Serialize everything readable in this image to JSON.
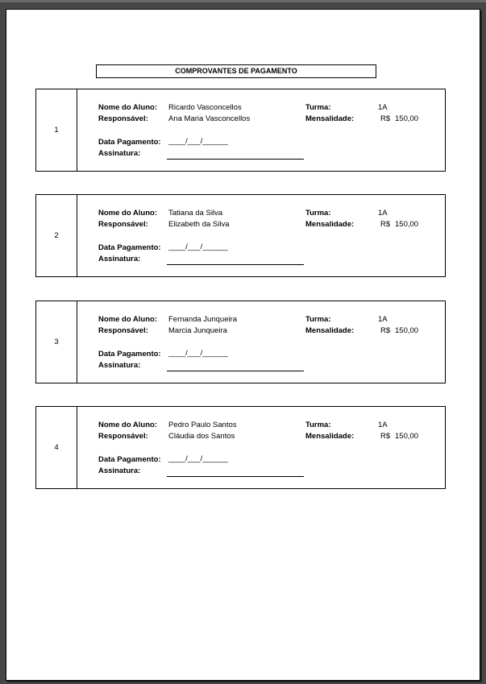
{
  "title": "COMPROVANTES DE PAGAMENTO",
  "labels": {
    "student": "Nome do Aluno:",
    "guardian": "Responsável:",
    "class": "Turma:",
    "fee": "Mensalidade:",
    "date": "Data Pagamento:",
    "signature": "Assinatura:",
    "date_blank": "____/___/______",
    "currency": "R$"
  },
  "receipts": [
    {
      "number": "1",
      "student": "Ricardo Vasconcellos",
      "guardian": "Ana Maria Vasconcellos",
      "class": "1A",
      "fee": "150,00"
    },
    {
      "number": "2",
      "student": "Tatiana da Silva",
      "guardian": "Elizabeth da Silva",
      "class": "1A",
      "fee": "150,00"
    },
    {
      "number": "3",
      "student": "Fernanda Junqueira",
      "guardian": "Marcia Junqueira",
      "class": "1A",
      "fee": "150,00"
    },
    {
      "number": "4",
      "student": "Pedro Paulo Santos",
      "guardian": "Cláudia dos Santos",
      "class": "1A",
      "fee": "150,00"
    }
  ]
}
